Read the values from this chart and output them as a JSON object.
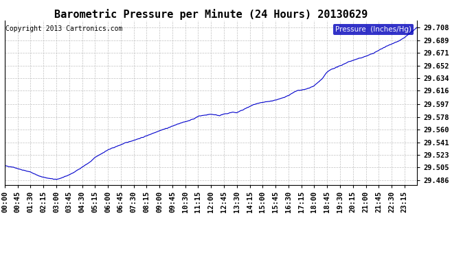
{
  "title": "Barometric Pressure per Minute (24 Hours) 20130629",
  "copyright": "Copyright 2013 Cartronics.com",
  "legend_label": "Pressure  (Inches/Hg)",
  "yticks": [
    29.486,
    29.505,
    29.523,
    29.541,
    29.56,
    29.578,
    29.597,
    29.616,
    29.634,
    29.652,
    29.671,
    29.689,
    29.708
  ],
  "ymin": 29.479,
  "ymax": 29.718,
  "xtick_labels": [
    "00:00",
    "00:45",
    "01:30",
    "02:15",
    "03:00",
    "03:45",
    "04:30",
    "05:15",
    "06:00",
    "06:45",
    "07:30",
    "08:15",
    "09:00",
    "09:45",
    "10:30",
    "11:15",
    "12:00",
    "12:45",
    "13:30",
    "14:15",
    "15:00",
    "15:45",
    "16:30",
    "17:15",
    "18:00",
    "18:45",
    "19:30",
    "20:15",
    "21:00",
    "21:45",
    "22:30",
    "23:15"
  ],
  "line_color": "#0000cc",
  "background_color": "#ffffff",
  "grid_color": "#c0c0c0",
  "title_fontsize": 11,
  "tick_fontsize": 7.5,
  "copyright_fontsize": 7
}
